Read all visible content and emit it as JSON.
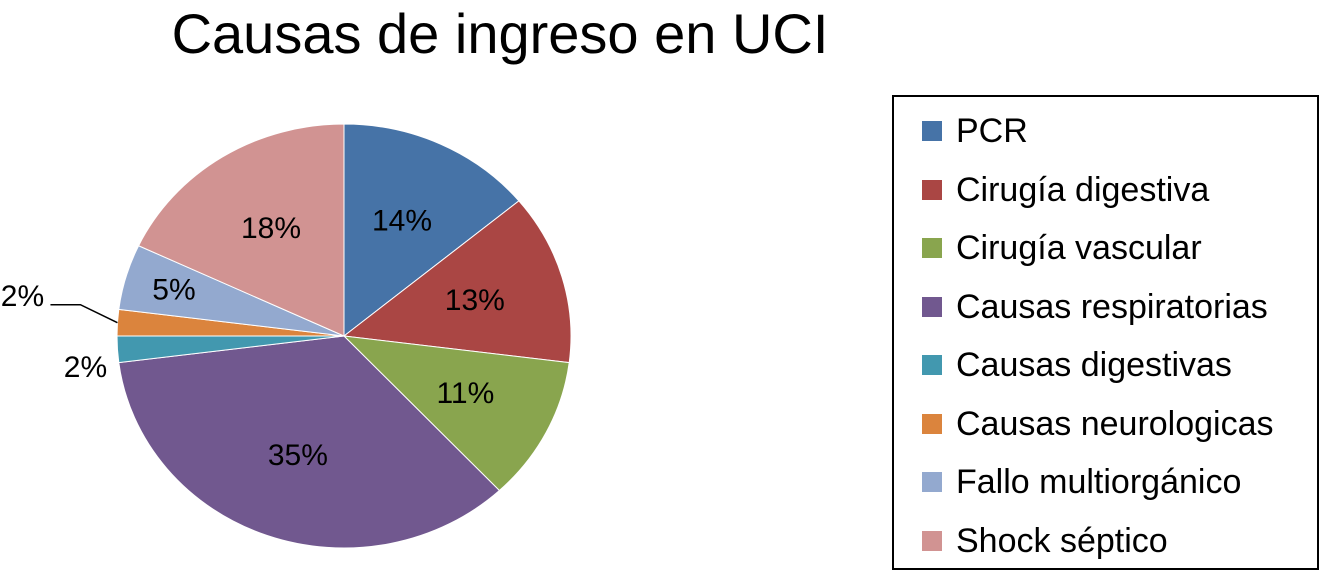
{
  "chart_data": {
    "type": "pie",
    "title": "Causas de ingreso en UCI",
    "series": [
      {
        "name": "PCR",
        "value": 14,
        "label": "14%",
        "color": "#4673a7"
      },
      {
        "name": "Cirugía digestiva",
        "value": 13,
        "label": "13%",
        "color": "#aa4644"
      },
      {
        "name": "Cirugía vascular",
        "value": 11,
        "label": "11%",
        "color": "#89a54e"
      },
      {
        "name": "Causas respiratorias",
        "value": 35,
        "label": "35%",
        "color": "#71588f"
      },
      {
        "name": "Causas digestivas",
        "value": 2,
        "label": "2%",
        "color": "#4298af"
      },
      {
        "name": "Causas neurologicas",
        "value": 2,
        "label": "2%",
        "color": "#db843d"
      },
      {
        "name": "Fallo multiorgánico",
        "value": 5,
        "label": "5%",
        "color": "#93a9cf"
      },
      {
        "name": "Shock séptico",
        "value": 18,
        "label": "18%",
        "color": "#d19392"
      }
    ],
    "legend_position": "right",
    "start_angle": "top",
    "direction": "clockwise"
  }
}
